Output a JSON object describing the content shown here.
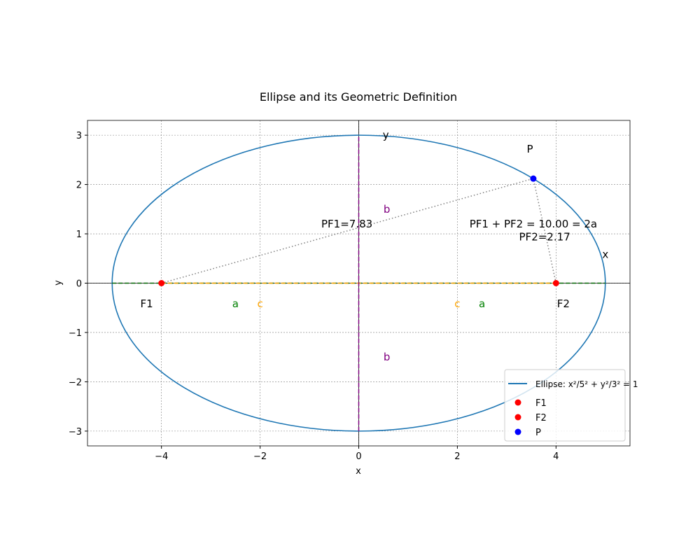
{
  "chart_data": {
    "type": "line",
    "title": "Ellipse and its Geometric Definition",
    "xlabel": "x",
    "ylabel": "y",
    "xlim": [
      -5.5,
      5.5
    ],
    "ylim": [
      -3.3,
      3.3
    ],
    "xticks": [
      -4,
      -2,
      0,
      2,
      4
    ],
    "xtick_labels": [
      "−4",
      "−2",
      "0",
      "2",
      "4"
    ],
    "yticks": [
      -3,
      -2,
      -1,
      0,
      1,
      2,
      3
    ],
    "ytick_labels": [
      "−3",
      "−2",
      "−1",
      "0",
      "1",
      "2",
      "3"
    ],
    "grid": true,
    "ellipse": {
      "a": 5,
      "b": 3,
      "color": "#1f77b4"
    },
    "points": [
      {
        "name": "F1",
        "x": -4,
        "y": 0,
        "color": "#ff0000"
      },
      {
        "name": "F2",
        "x": 4,
        "y": 0,
        "color": "#ff0000"
      },
      {
        "name": "P",
        "x": 3.54,
        "y": 2.12,
        "color": "#0000ff"
      }
    ],
    "segments": [
      {
        "from": [
          -5,
          0
        ],
        "to": [
          5,
          0
        ],
        "style": "dashed",
        "color": "#006400"
      },
      {
        "from": [
          -4,
          0
        ],
        "to": [
          4,
          0
        ],
        "style": "dashed",
        "color": "#ffa500"
      },
      {
        "from": [
          0,
          -3
        ],
        "to": [
          0,
          3
        ],
        "style": "dashed",
        "color": "#800080"
      },
      {
        "from": [
          -4,
          0
        ],
        "to": [
          3.54,
          2.12
        ],
        "style": "dotted",
        "color": "#808080"
      },
      {
        "from": [
          4,
          0
        ],
        "to": [
          3.54,
          2.12
        ],
        "style": "dotted",
        "color": "#808080"
      }
    ],
    "annotations": [
      {
        "text": "F1",
        "x": -4.3,
        "y": -0.42,
        "color": "#000000",
        "size": 15
      },
      {
        "text": "F2",
        "x": 4.15,
        "y": -0.42,
        "color": "#000000",
        "size": 15
      },
      {
        "text": "P",
        "x": 3.47,
        "y": 2.72,
        "color": "#000000",
        "size": 15
      },
      {
        "text": "y",
        "x": 0.55,
        "y": 3.0,
        "color": "#000000",
        "size": 15
      },
      {
        "text": "x",
        "x": 5.0,
        "y": 0.58,
        "color": "#000000",
        "size": 15
      },
      {
        "text": "a",
        "x": -2.5,
        "y": -0.42,
        "color": "#008000",
        "size": 15
      },
      {
        "text": "c",
        "x": -2.0,
        "y": -0.42,
        "color": "#ffa500",
        "size": 15
      },
      {
        "text": "c",
        "x": 2.0,
        "y": -0.42,
        "color": "#ffa500",
        "size": 15
      },
      {
        "text": "a",
        "x": 2.5,
        "y": -0.42,
        "color": "#008000",
        "size": 15
      },
      {
        "text": "b",
        "x": 0.57,
        "y": 1.5,
        "color": "#800080",
        "size": 15
      },
      {
        "text": "b",
        "x": 0.57,
        "y": -1.5,
        "color": "#800080",
        "size": 15
      },
      {
        "text": "PF1=7.83",
        "x": -0.24,
        "y": 1.2,
        "color": "#000000",
        "size": 15
      },
      {
        "text": "PF2=2.17",
        "x": 3.77,
        "y": 0.94,
        "color": "#000000",
        "size": 15
      },
      {
        "text": "PF1 + PF2 = 10.00 = 2a",
        "x": 3.54,
        "y": 1.2,
        "color": "#000000",
        "size": 15
      }
    ],
    "legend": {
      "placement": "lower right",
      "entries": [
        {
          "label": "Ellipse: x²/5² + y²/3² = 1",
          "kind": "line",
          "color": "#1f77b4"
        },
        {
          "label": "F1",
          "kind": "dot",
          "color": "#ff0000"
        },
        {
          "label": "F2",
          "kind": "dot",
          "color": "#ff0000"
        },
        {
          "label": "P",
          "kind": "dot",
          "color": "#0000ff"
        }
      ]
    }
  }
}
